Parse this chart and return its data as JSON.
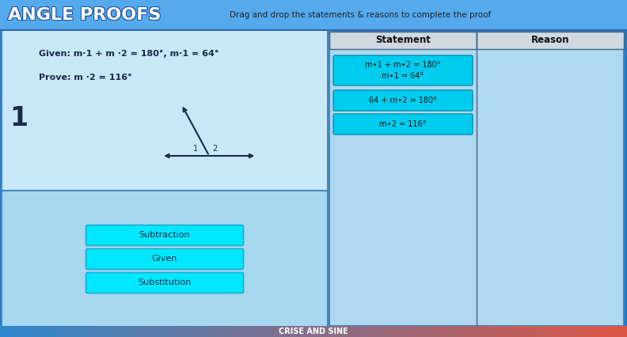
{
  "title": "ANGLE PROOFS",
  "subtitle": "Drag and drop the statements & reasons to complete the proof",
  "outer_bg": "#2277cc",
  "header_bg": "#55aaee",
  "top_panel_bg": "#c8e8f8",
  "bottom_panel_bg": "#a8d8f0",
  "right_panel_bg": "#b0d8f0",
  "given_text": "Given: m∙1 + m ∙2 = 180°, m∙1 = 64°",
  "prove_text": "Prove: m ∙2 = 116°",
  "number": "1",
  "statement_header": "Statement",
  "reason_header": "Reason",
  "statement_boxes": [
    "m∙1 + m∙2 = 180°\nm∙1 = 64°",
    "64 + m∙2 = 180°",
    "m∙2 = 116°"
  ],
  "reason_buttons": [
    "Subtraction",
    "Given",
    "Substitution"
  ],
  "button_bg": "#00e8ff",
  "button_border": "#22aacc",
  "stmt_btn_bg": "#00ccee",
  "stmt_btn_border": "#1199bb",
  "footer_text": "CRISE AND SINE",
  "title_color": "white",
  "title_outline": "#2255aa",
  "panel_border": "#4488bb",
  "text_dark": "#1a2a4a",
  "header_text_color": "#222222"
}
